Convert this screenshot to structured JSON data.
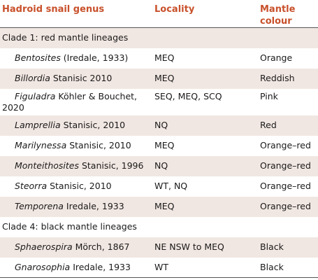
{
  "headers": {
    "genus": "Hadroid snail genus",
    "locality": "Locality",
    "mantle": "Mantle colour"
  },
  "clade1": "Clade 1: red mantle lineages",
  "clade4": "Clade 4: black mantle lineages",
  "rows1": [
    {
      "genus": "Bentosites",
      "author": " (Iredale, 1933)",
      "locality": "MEQ",
      "colour": "Orange"
    },
    {
      "genus": "Billordia",
      "author": " Stanisic 2010",
      "locality": "MEQ",
      "colour": "Reddish"
    },
    {
      "genus": "Figuladra",
      "author": " Köhler & Bouchet, 2020",
      "locality": "SEQ, MEQ, SCQ",
      "colour": "Pink"
    },
    {
      "genus": "Lamprellia",
      "author": " Stanisic, 2010",
      "locality": "NQ",
      "colour": "Red"
    },
    {
      "genus": "Marilynessa",
      "author": " Stanisic, 2010",
      "locality": "MEQ",
      "colour": "Orange–red"
    },
    {
      "genus": "Monteithosites",
      "author": " Stanisic, 1996",
      "locality": "NQ",
      "colour": "Orange–red"
    },
    {
      "genus": "Steorra",
      "author": " Stanisic, 2010",
      "locality": "WT, NQ",
      "colour": "Orange–red"
    },
    {
      "genus": "Temporena",
      "author": " Iredale, 1933",
      "locality": "MEQ",
      "colour": "Orange–red"
    }
  ],
  "rows4": [
    {
      "genus": "Sphaerospira",
      "author": " Mörch, 1867",
      "locality": "NE NSW to MEQ",
      "colour": "Black"
    },
    {
      "genus": "Gnarosophia",
      "author": " Iredale, 1933",
      "locality": "WT",
      "colour": "Black"
    }
  ],
  "colors": {
    "header_text": "#c8502a",
    "row_shade": "#f1e7e2"
  }
}
